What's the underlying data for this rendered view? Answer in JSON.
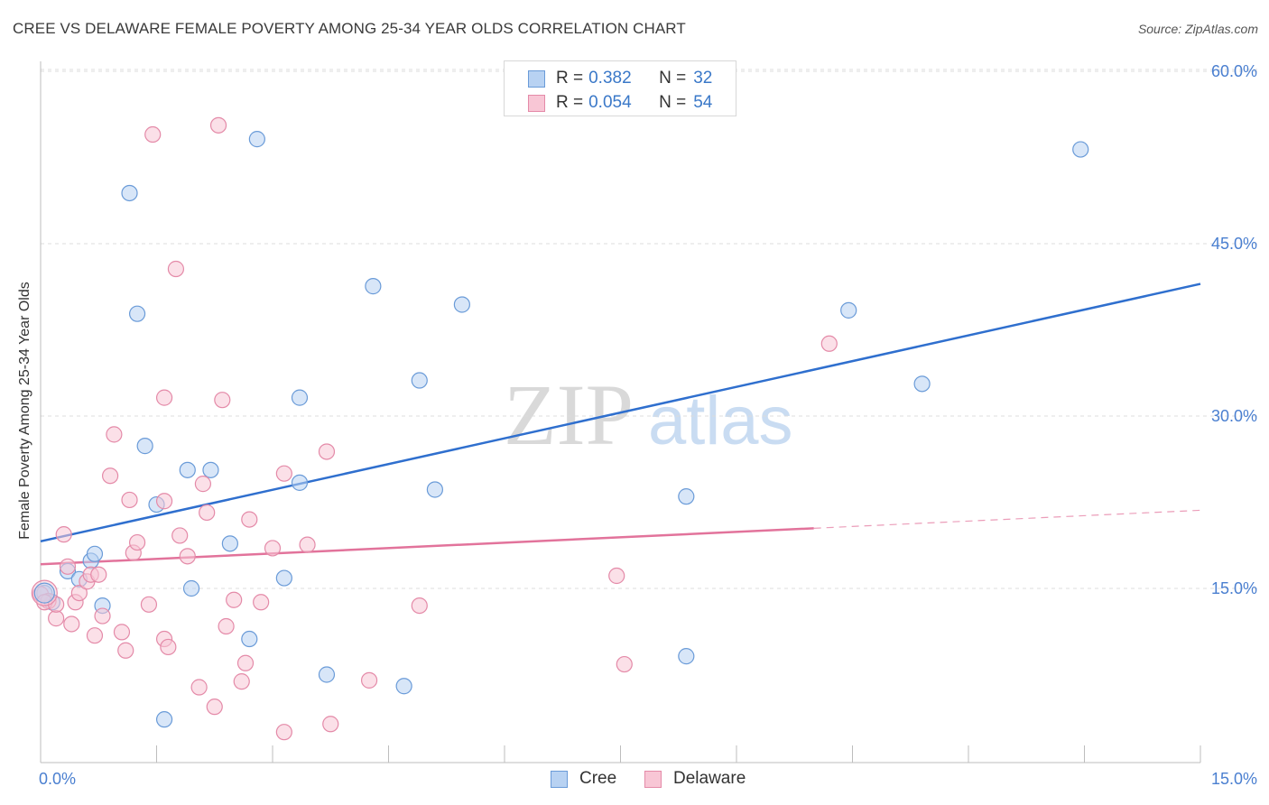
{
  "header": {
    "title": "CREE VS DELAWARE FEMALE POVERTY AMONG 25-34 YEAR OLDS CORRELATION CHART",
    "source": "Source: ZipAtlas.com"
  },
  "legend": {
    "rows": [
      {
        "r_label": "R =",
        "r_value": "0.382",
        "n_label": "N =",
        "n_value": "32"
      },
      {
        "r_label": "R =",
        "r_value": "0.054",
        "n_label": "N =",
        "n_value": "54"
      }
    ]
  },
  "bottom_legend": {
    "items": [
      {
        "label": "Cree"
      },
      {
        "label": "Delaware"
      }
    ]
  },
  "watermark": {
    "zip": "ZIP",
    "atlas": "atlas"
  },
  "colors": {
    "cree_fill": "#b8d2f2",
    "cree_stroke": "#6a9bd8",
    "cree_line": "#2f6fce",
    "delaware_fill": "#f8c6d5",
    "delaware_stroke": "#e48aa8",
    "delaware_line": "#e2739b",
    "tick_label": "#4a7fd0",
    "grid": "#dcdcdc"
  },
  "chart_data": {
    "type": "scatter",
    "title": "CREE VS DELAWARE FEMALE POVERTY AMONG 25-34 YEAR OLDS CORRELATION CHART",
    "xlabel": "",
    "ylabel": "Female Poverty Among 25-34 Year Olds",
    "xlim": [
      0,
      15
    ],
    "ylim": [
      0,
      60
    ],
    "x_tick_labels": [
      "0.0%",
      "15.0%"
    ],
    "y_tick_labels": [
      "15.0%",
      "30.0%",
      "45.0%",
      "60.0%"
    ],
    "y_ticks": [
      15,
      30,
      45,
      60
    ],
    "x_minor_ticks": [
      1.5,
      3.0,
      4.5,
      6.0,
      7.5,
      9.0,
      10.5,
      12.0,
      13.5,
      15.0
    ],
    "grid": true,
    "legend_position": "top-center",
    "series": [
      {
        "name": "Cree",
        "r": 0.382,
        "n": 32,
        "trend": {
          "x": [
            0,
            15
          ],
          "y": [
            19.1,
            41.5
          ],
          "dashed_from": null
        },
        "points": [
          [
            0.05,
            14.6
          ],
          [
            0.15,
            13.8
          ],
          [
            0.35,
            16.5
          ],
          [
            0.5,
            15.8
          ],
          [
            0.65,
            17.4
          ],
          [
            0.8,
            13.5
          ],
          [
            0.7,
            18.0
          ],
          [
            1.15,
            49.4
          ],
          [
            1.25,
            38.9
          ],
          [
            1.35,
            27.4
          ],
          [
            1.5,
            22.3
          ],
          [
            1.9,
            25.3
          ],
          [
            2.2,
            25.3
          ],
          [
            1.95,
            15.0
          ],
          [
            2.45,
            18.9
          ],
          [
            2.7,
            10.6
          ],
          [
            2.8,
            54.1
          ],
          [
            3.15,
            15.9
          ],
          [
            3.35,
            31.6
          ],
          [
            3.35,
            24.2
          ],
          [
            3.7,
            7.5
          ],
          [
            4.3,
            41.3
          ],
          [
            4.7,
            6.5
          ],
          [
            4.9,
            33.1
          ],
          [
            5.1,
            23.6
          ],
          [
            5.45,
            39.7
          ],
          [
            8.35,
            23.0
          ],
          [
            8.35,
            9.1
          ],
          [
            10.45,
            39.2
          ],
          [
            11.4,
            32.8
          ],
          [
            13.45,
            53.2
          ],
          [
            1.6,
            3.6
          ]
        ]
      },
      {
        "name": "Delaware",
        "r": 0.054,
        "n": 54,
        "trend": {
          "x": [
            0,
            15
          ],
          "y": [
            17.1,
            21.8
          ],
          "dashed_from": 10.0
        },
        "points": [
          [
            0.0,
            14.5
          ],
          [
            0.1,
            13.9
          ],
          [
            0.2,
            12.4
          ],
          [
            0.3,
            19.7
          ],
          [
            0.35,
            16.9
          ],
          [
            0.4,
            11.9
          ],
          [
            0.45,
            13.8
          ],
          [
            0.5,
            14.6
          ],
          [
            0.6,
            15.6
          ],
          [
            0.65,
            16.2
          ],
          [
            0.7,
            10.9
          ],
          [
            0.75,
            16.2
          ],
          [
            0.8,
            12.6
          ],
          [
            0.9,
            24.8
          ],
          [
            0.95,
            28.4
          ],
          [
            1.05,
            11.2
          ],
          [
            1.1,
            9.6
          ],
          [
            1.15,
            22.7
          ],
          [
            1.2,
            18.1
          ],
          [
            1.25,
            19.0
          ],
          [
            1.45,
            54.5
          ],
          [
            1.4,
            13.6
          ],
          [
            1.6,
            22.6
          ],
          [
            1.6,
            10.6
          ],
          [
            1.6,
            31.6
          ],
          [
            1.65,
            9.9
          ],
          [
            1.75,
            42.8
          ],
          [
            1.8,
            19.6
          ],
          [
            1.9,
            17.8
          ],
          [
            2.05,
            6.4
          ],
          [
            2.1,
            24.1
          ],
          [
            2.15,
            21.6
          ],
          [
            2.25,
            4.7
          ],
          [
            2.3,
            55.3
          ],
          [
            2.35,
            31.4
          ],
          [
            2.4,
            11.7
          ],
          [
            2.5,
            14.0
          ],
          [
            2.6,
            6.9
          ],
          [
            2.65,
            8.5
          ],
          [
            2.7,
            21.0
          ],
          [
            2.85,
            13.8
          ],
          [
            3.0,
            18.5
          ],
          [
            3.15,
            2.5
          ],
          [
            3.15,
            25.0
          ],
          [
            3.45,
            18.8
          ],
          [
            3.7,
            26.9
          ],
          [
            3.75,
            3.2
          ],
          [
            4.25,
            7.0
          ],
          [
            4.9,
            13.5
          ],
          [
            7.45,
            16.1
          ],
          [
            7.55,
            8.4
          ],
          [
            10.2,
            36.3
          ],
          [
            0.05,
            13.8
          ],
          [
            0.2,
            13.6
          ]
        ]
      }
    ]
  }
}
